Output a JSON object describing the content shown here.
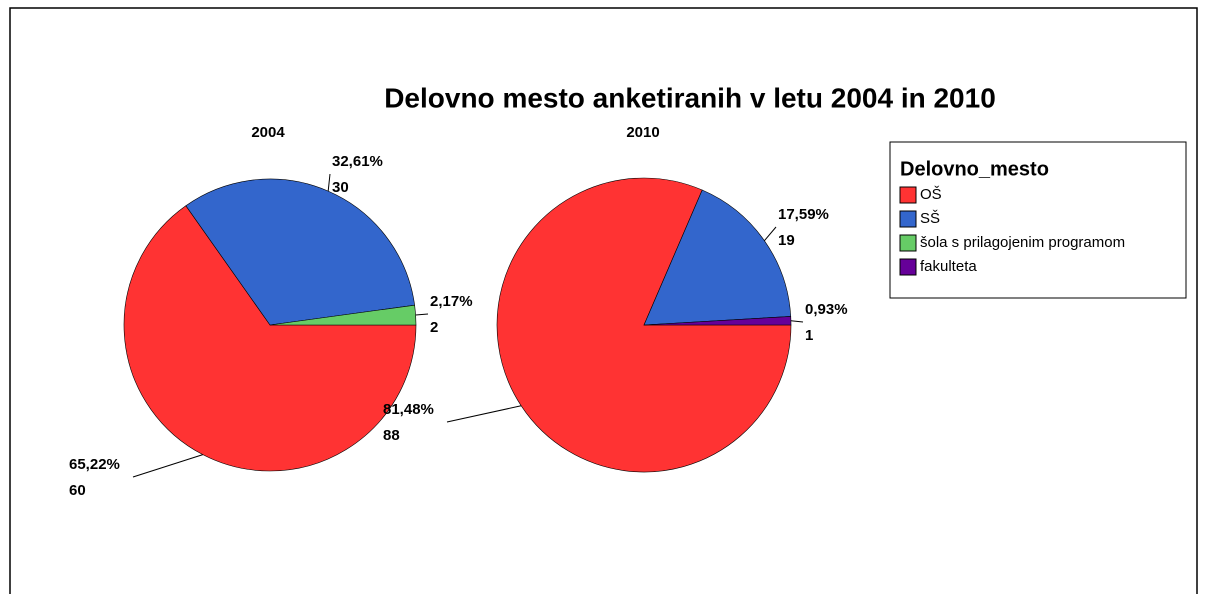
{
  "title": "Delovno mesto anketiranih v letu 2004 in 2010",
  "legend": {
    "title": "Delovno_mesto",
    "items": [
      {
        "name": "OŠ",
        "color": "#ff3333"
      },
      {
        "name": "SŠ",
        "color": "#3366cc"
      },
      {
        "name": "šola s prilagojenim programom",
        "color": "#66cc66"
      },
      {
        "name": "fakulteta",
        "color": "#660099"
      }
    ]
  },
  "chart_data": [
    {
      "type": "pie",
      "title": "2004",
      "categories": [
        "OŠ",
        "SŠ",
        "šola s prilagojenim programom"
      ],
      "values": [
        65.22,
        32.61,
        2.17
      ],
      "value_labels": [
        "65,22%",
        "32,61%",
        "2,17%"
      ],
      "counts": [
        60,
        30,
        2
      ]
    },
    {
      "type": "pie",
      "title": "2010",
      "categories": [
        "OŠ",
        "SŠ",
        "fakulteta"
      ],
      "values": [
        81.48,
        17.59,
        0.93
      ],
      "value_labels": [
        "81,48%",
        "17,59%",
        "0,93%"
      ],
      "counts": [
        88,
        19,
        1
      ]
    }
  ]
}
